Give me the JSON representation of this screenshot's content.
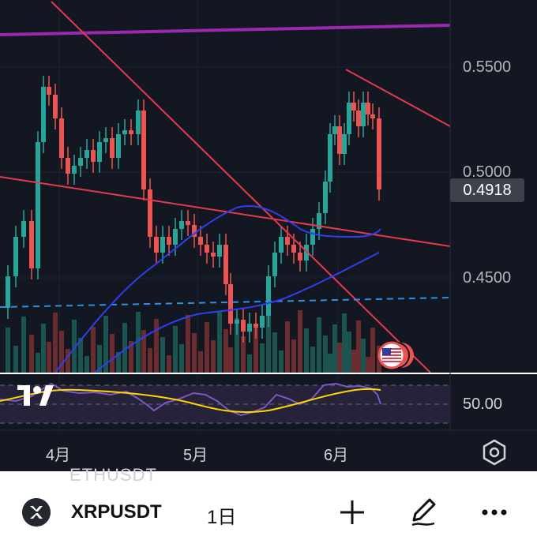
{
  "chart": {
    "price_axis_labels": [
      "0.5500",
      "0.5000",
      "0.4500"
    ],
    "current_price": "0.4918",
    "rsi_level": "50.00",
    "months": [
      "4月",
      "5月",
      "6月"
    ],
    "colors": {
      "background": "#131722",
      "up_candle": "#26a69a",
      "down_candle": "#ef5350",
      "purple_line": "#9c27b0",
      "red_trendline": "#e53950",
      "ma_line": "#2f3ff0",
      "dashed_line": "#2f8fe0",
      "rsi_line": "#7e57c2",
      "rsi_ma": "#ffd600"
    },
    "icons": [
      "tradingview-logo-icon",
      "us-flag-event-icon",
      "settings-hexagon-icon"
    ]
  },
  "toolbar": {
    "ghost_text": "ETHUSDT",
    "symbol": "XRPUSDT",
    "interval": "1日",
    "icons": [
      "xrp-logo-icon",
      "plus-icon",
      "draw-pen-icon",
      "more-icon"
    ]
  }
}
